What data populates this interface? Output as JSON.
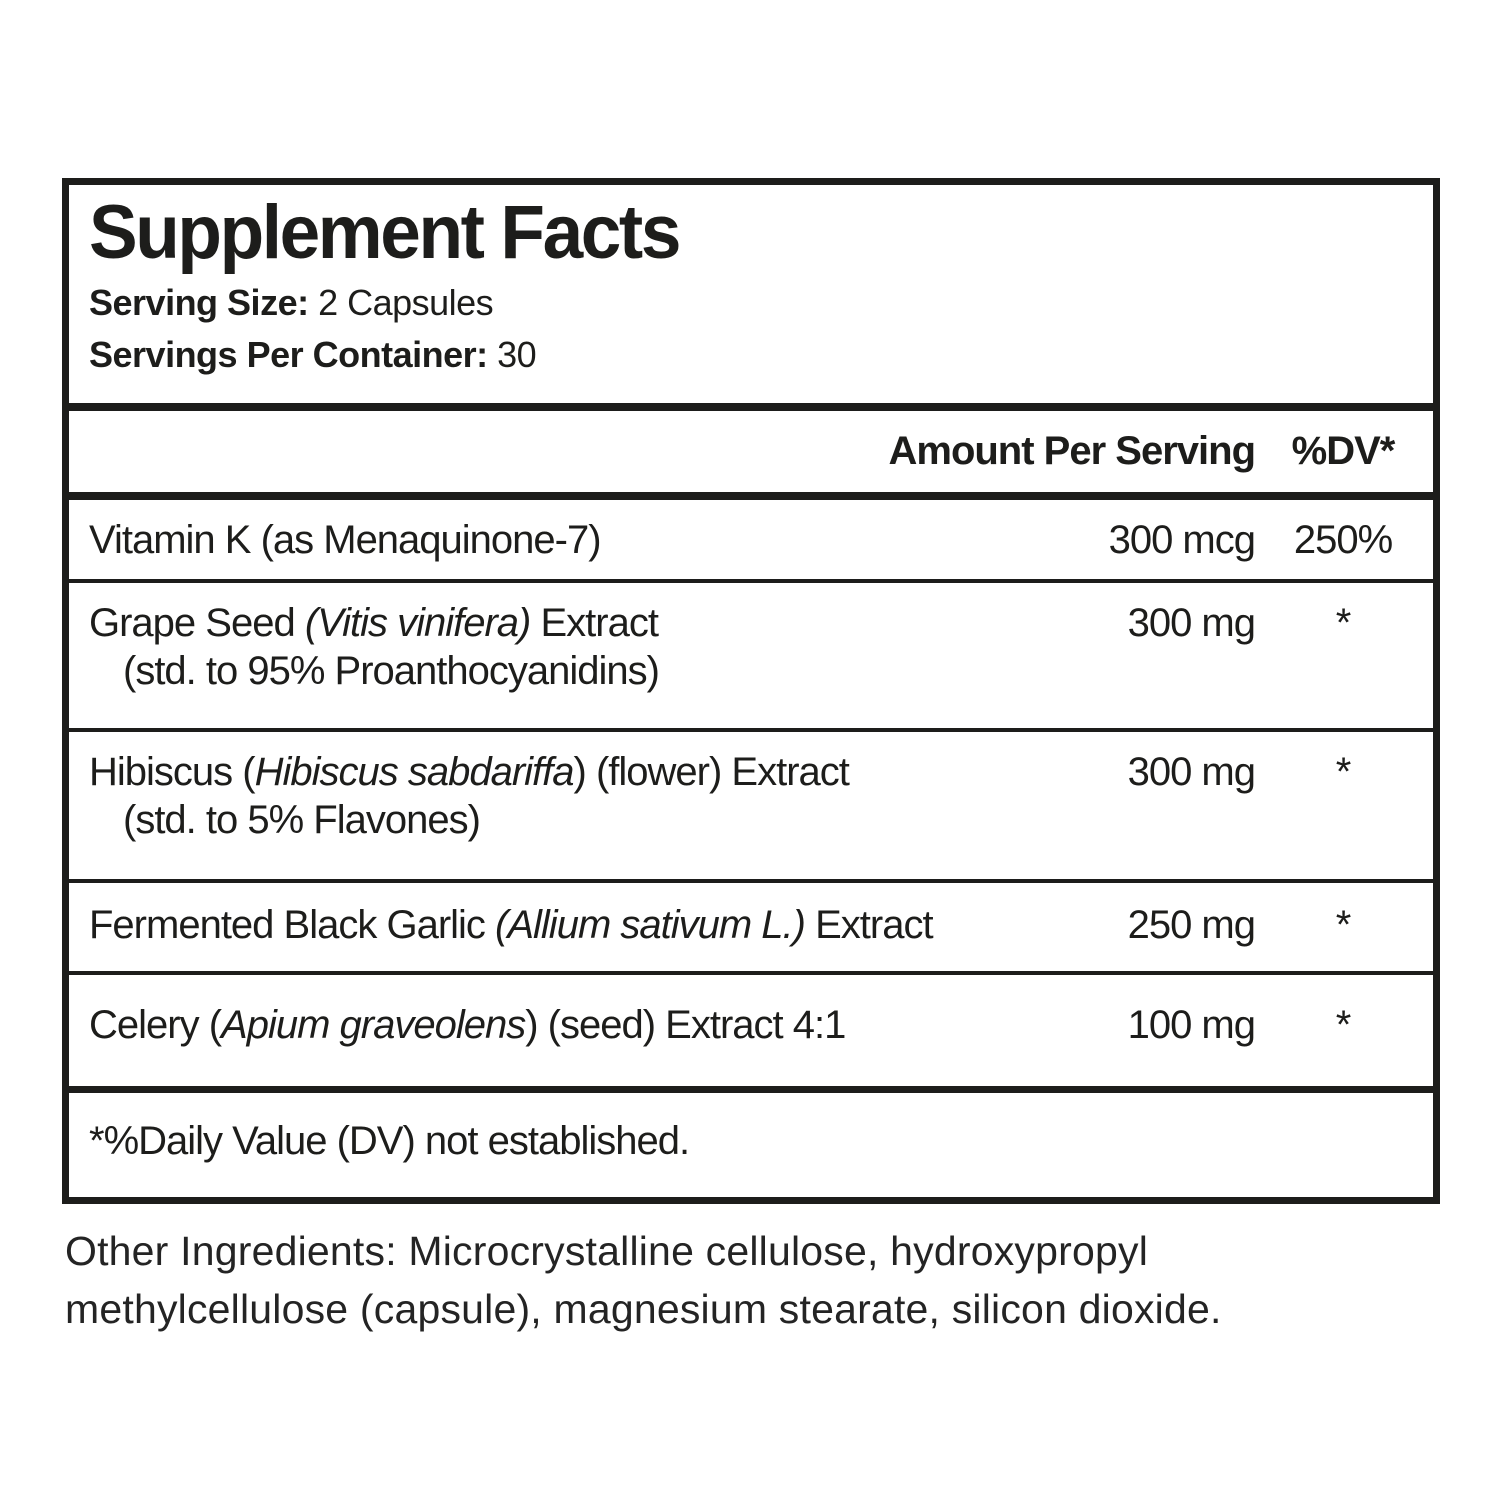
{
  "panel": {
    "title": "Supplement Facts",
    "serving_size_label": "Serving Size:",
    "serving_size_value": " 2 Capsules",
    "servings_per_container_label": "Servings Per Container:",
    "servings_per_container_value": " 30",
    "columns": {
      "amount_header": "Amount Per Serving",
      "dv_header": "%DV*"
    },
    "rows": [
      {
        "name_parts": [
          {
            "text": "Vitamin K (as Menaquinone-7)",
            "italic": false
          }
        ],
        "sub": "",
        "amount": "300 mcg",
        "dv": "250%"
      },
      {
        "name_parts": [
          {
            "text": "Grape Seed ",
            "italic": false
          },
          {
            "text": "(Vitis vinifera)",
            "italic": true
          },
          {
            "text": " Extract",
            "italic": false
          }
        ],
        "sub": "(std. to 95% Proanthocyanidins)",
        "amount": "300 mg",
        "dv": "*"
      },
      {
        "name_parts": [
          {
            "text": "Hibiscus (",
            "italic": false
          },
          {
            "text": "Hibiscus sabdariffa",
            "italic": true
          },
          {
            "text": ") (flower) Extract",
            "italic": false
          }
        ],
        "sub": "(std. to 5% Flavones)",
        "amount": "300 mg",
        "dv": "*"
      },
      {
        "name_parts": [
          {
            "text": "Fermented Black Garlic ",
            "italic": false
          },
          {
            "text": "(Allium sativum L.)",
            "italic": true
          },
          {
            "text": " Extract",
            "italic": false
          }
        ],
        "sub": "",
        "amount": "250 mg",
        "dv": "*"
      },
      {
        "name_parts": [
          {
            "text": "Celery (",
            "italic": false
          },
          {
            "text": "Apium graveolens",
            "italic": true
          },
          {
            "text": ") (seed) Extract 4:1",
            "italic": false
          }
        ],
        "sub": "",
        "amount": "100 mg",
        "dv": "*"
      }
    ],
    "footnote": "*%Daily Value (DV) not established.",
    "other_ingredients": "Other Ingredients: Microcrystalline cellulose, hydroxypropyl methylcellulose (capsule), magnesium stearate, silicon dioxide.",
    "colors": {
      "text": "#1d1d1b",
      "background": "#ffffff"
    }
  }
}
